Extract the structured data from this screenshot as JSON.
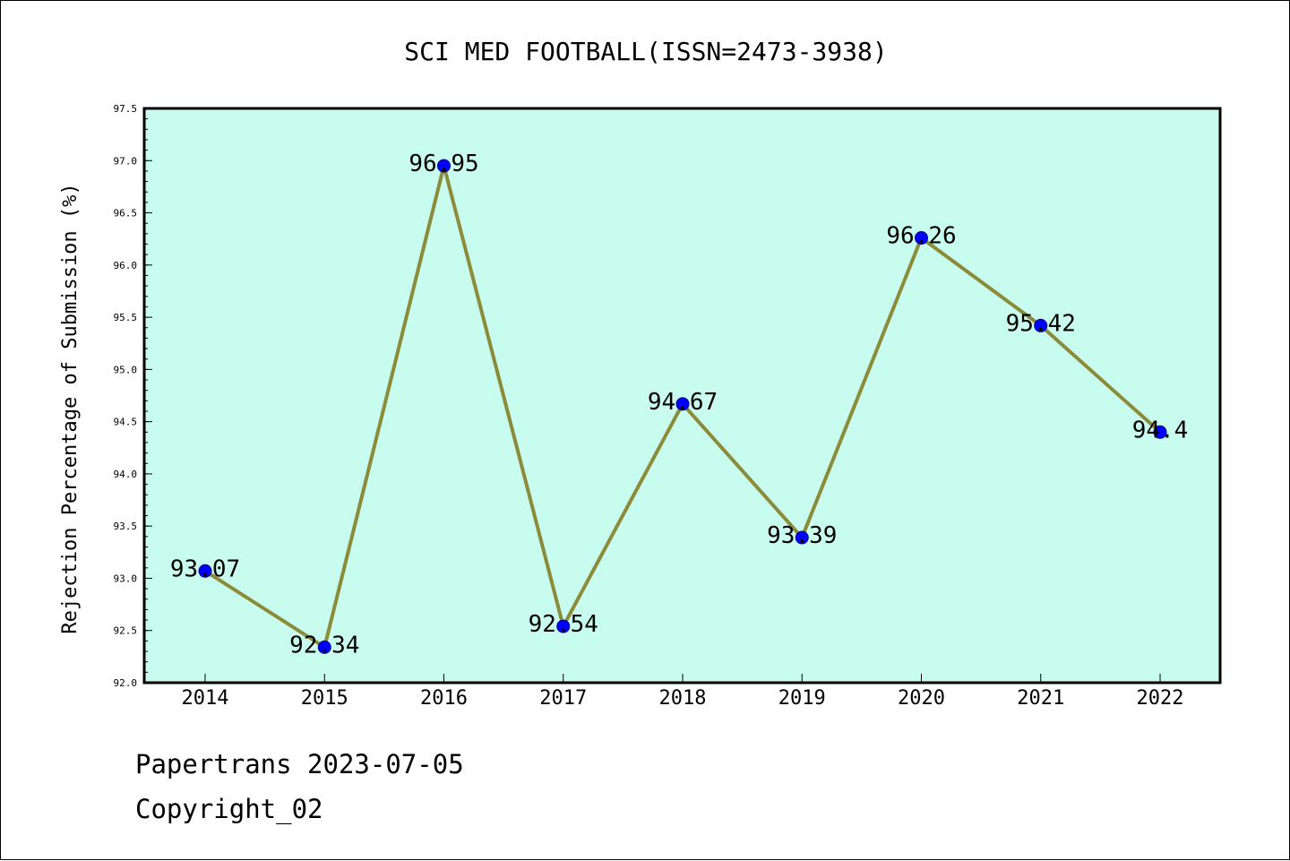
{
  "chart_data": {
    "type": "line",
    "title": "SCI MED FOOTBALL(ISSN=2473-3938)",
    "xlabel": "",
    "ylabel": "Rejection Percentage of Submission (%)",
    "categories": [
      "2014",
      "2015",
      "2016",
      "2017",
      "2018",
      "2019",
      "2020",
      "2021",
      "2022"
    ],
    "series": [
      {
        "values": [
          93.07,
          92.34,
          96.95,
          92.54,
          94.67,
          93.39,
          96.26,
          95.42,
          94.4
        ],
        "labels": [
          "93.07",
          "92.34",
          "96.95",
          "92.54",
          "94.67",
          "93.39",
          "96.26",
          "95.42",
          "94.4"
        ]
      }
    ],
    "ylim": [
      92.0,
      97.5
    ],
    "yticks": [
      "92.0",
      "92.5",
      "93.0",
      "93.5",
      "94.0",
      "94.5",
      "95.0",
      "95.5",
      "96.0",
      "96.5",
      "97.0",
      "97.5"
    ],
    "grid": false,
    "colors": {
      "plot_background": "#c8fcee",
      "line": "#8b8b3a",
      "marker": "#0000ff",
      "marker_edge": "#00008b",
      "axes": "#000000"
    }
  },
  "footer": {
    "line1": "Papertrans 2023-07-05",
    "line2": "Copyright_02"
  }
}
